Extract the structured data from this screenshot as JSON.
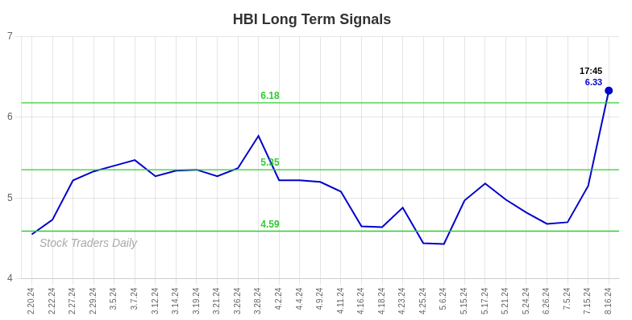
{
  "chart_data": {
    "type": "line",
    "title": "HBI Long Term Signals",
    "categories": [
      "2.20.24",
      "2.22.24",
      "2.27.24",
      "2.29.24",
      "3.5.24",
      "3.7.24",
      "3.12.24",
      "3.14.24",
      "3.19.24",
      "3.21.24",
      "3.26.24",
      "3.28.24",
      "4.2.24",
      "4.4.24",
      "4.9.24",
      "4.11.24",
      "4.16.24",
      "4.18.24",
      "4.23.24",
      "4.25.24",
      "5.6.24",
      "5.15.24",
      "5.17.24",
      "5.21.24",
      "5.24.24",
      "6.26.24",
      "7.5.24",
      "7.15.24",
      "8.16.24"
    ],
    "values": [
      4.55,
      4.73,
      5.22,
      5.33,
      5.4,
      5.47,
      5.27,
      5.34,
      5.35,
      5.27,
      5.37,
      5.77,
      5.22,
      5.22,
      5.2,
      5.08,
      4.65,
      4.64,
      4.88,
      4.44,
      4.43,
      4.97,
      5.18,
      4.98,
      4.82,
      4.68,
      4.7,
      5.15,
      6.33
    ],
    "color": "#0000cc",
    "ylim": [
      4.0,
      7.0
    ],
    "yticks": [
      4,
      5,
      6,
      7
    ],
    "grid": true,
    "hlines": [
      {
        "y": 6.18,
        "label": "6.18",
        "color": "#33cc33"
      },
      {
        "y": 5.35,
        "label": "5.35",
        "color": "#33cc33"
      },
      {
        "y": 4.59,
        "label": "4.59",
        "color": "#33cc33"
      }
    ],
    "annotations": [
      {
        "text": "17:45",
        "color": "#000000"
      },
      {
        "text": "6.33",
        "color": "#0000cc"
      }
    ],
    "watermark": {
      "text": "Stock Traders Daily",
      "color": "#aaaaaa"
    }
  }
}
